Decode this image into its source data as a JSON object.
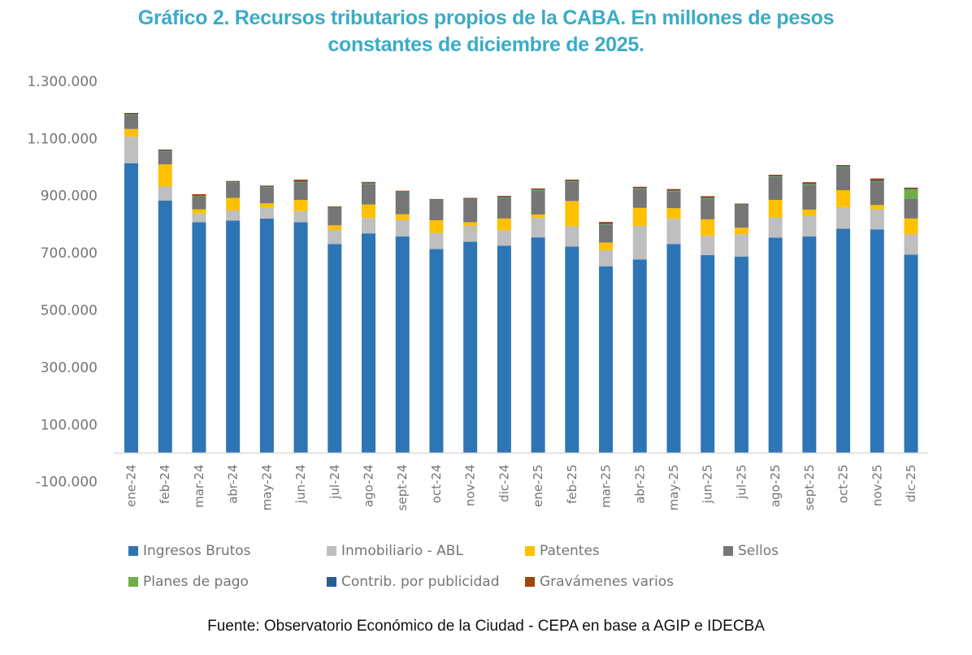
{
  "title": {
    "line1": "Gráfico 2. Recursos tributarios propios de la CABA. En millones de pesos",
    "line2": "constantes de diciembre de 2025."
  },
  "source": "Fuente: Observatorio Económico de la Ciudad - CEPA en base a AGIP e IDECBA",
  "chart_data": {
    "type": "bar",
    "stacked": true,
    "title": "Gráfico 2. Recursos tributarios propios de la CABA. En millones de pesos constantes de diciembre de 2025.",
    "xlabel": "",
    "ylabel": "",
    "ylim": [
      -100000,
      1300000
    ],
    "yticks": [
      -100000,
      100000,
      300000,
      500000,
      700000,
      900000,
      1100000,
      1300000
    ],
    "ytick_labels": [
      "-100.000",
      "100.000",
      "300.000",
      "500.000",
      "700.000",
      "900.000",
      "1.100.000",
      "1.300.000"
    ],
    "grid": false,
    "legend_position": "bottom",
    "categories": [
      "ene-24",
      "feb-24",
      "mar-24",
      "abr-24",
      "may-24",
      "jun-24",
      "jul-24",
      "ago-24",
      "sept-24",
      "oct-24",
      "nov-24",
      "dic-24",
      "ene-25",
      "feb-25",
      "mar-25",
      "abr-25",
      "may-25",
      "jun-25",
      "jul-25",
      "ago-25",
      "sept-25",
      "oct-25",
      "nov-25",
      "dic-25"
    ],
    "series": [
      {
        "name": "Ingresos Brutos",
        "color": "#2E75B6",
        "values": [
          1013000,
          883000,
          807000,
          813000,
          820000,
          807000,
          731000,
          768000,
          757000,
          713000,
          739000,
          725000,
          754000,
          722000,
          653000,
          677000,
          731000,
          692000,
          687000,
          753000,
          757000,
          784000,
          782000,
          694000
        ]
      },
      {
        "name": "Inmobiliario - ABL",
        "color": "#BFBFBF",
        "values": [
          93000,
          49000,
          32000,
          35000,
          39000,
          39000,
          49000,
          54000,
          57000,
          57000,
          55000,
          54000,
          68000,
          71000,
          56000,
          117000,
          88000,
          67000,
          78000,
          71000,
          74000,
          76000,
          70000,
          70000
        ]
      },
      {
        "name": "Patentes",
        "color": "#FFC000",
        "values": [
          27000,
          77000,
          13000,
          44000,
          14000,
          39000,
          16000,
          47000,
          21000,
          44000,
          13000,
          41000,
          12000,
          88000,
          27000,
          63000,
          37000,
          58000,
          23000,
          61000,
          20000,
          59000,
          15000,
          56000
        ]
      },
      {
        "name": "Sellos",
        "color": "#767676",
        "values": [
          49000,
          46000,
          46000,
          53000,
          55000,
          61000,
          62000,
          72000,
          76000,
          68000,
          79000,
          72000,
          83000,
          67000,
          62000,
          66000,
          58000,
          72000,
          78000,
          80000,
          86000,
          82000,
          82000,
          69000
        ]
      },
      {
        "name": "Planes de pago",
        "color": "#70AD47",
        "values": [
          3000,
          2000,
          3000,
          3000,
          3000,
          3000,
          2000,
          3000,
          2000,
          3000,
          2000,
          3000,
          3000,
          3000,
          3000,
          3000,
          3000,
          3000,
          2000,
          3000,
          3000,
          2000,
          3000,
          34000
        ]
      },
      {
        "name": "Contrib. por publicidad",
        "color": "#255E91",
        "values": [
          1000,
          1000,
          1000,
          1000,
          1000,
          1000,
          1000,
          1000,
          1000,
          1000,
          1000,
          1000,
          1000,
          1000,
          1000,
          1000,
          1000,
          1000,
          1000,
          1000,
          1000,
          1000,
          1000,
          1000
        ]
      },
      {
        "name": "Gravámenes varios",
        "color": "#9E480E",
        "values": [
          3000,
          3000,
          3000,
          2000,
          3000,
          6000,
          1000,
          3000,
          3000,
          2000,
          3000,
          3000,
          4000,
          4000,
          6000,
          4000,
          5000,
          5000,
          3000,
          4000,
          6000,
          3000,
          7000,
          4000
        ]
      }
    ]
  }
}
